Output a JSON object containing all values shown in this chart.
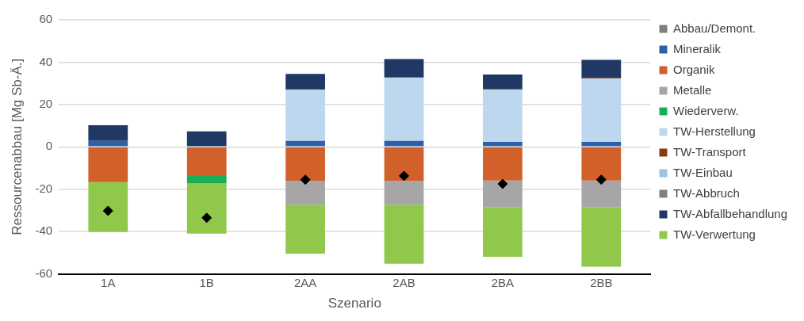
{
  "chart_data": {
    "type": "bar",
    "stacked": true,
    "xlabel": "Szenario",
    "ylabel": "Ressourcenabbau [Mg Sb-Ä.]",
    "categories": [
      "1A",
      "1B",
      "2AA",
      "2AB",
      "2BA",
      "2BB"
    ],
    "ylim": [
      -60,
      60
    ],
    "yticks": [
      -60,
      -40,
      -20,
      0,
      20,
      40,
      60
    ],
    "grid": "y",
    "legend": "right",
    "series": [
      {
        "name": "Abbau/Demont.",
        "color": "#7f7f7f",
        "values": [
          0,
          0,
          0,
          0,
          0,
          0
        ]
      },
      {
        "name": "Mineralik",
        "color": "#2e5fa8",
        "values": [
          2.8,
          0.3,
          2.8,
          2.8,
          2.4,
          2.4
        ]
      },
      {
        "name": "Organik",
        "color": "#d2602a",
        "values": [
          -16.6,
          -13.7,
          -16,
          -16.1,
          -15.9,
          -15.9
        ]
      },
      {
        "name": "Metalle",
        "color": "#a6a6a6",
        "values": [
          0,
          0,
          -11.3,
          -11.2,
          -12.5,
          -12.5
        ]
      },
      {
        "name": "Wiederverw.",
        "color": "#1aaf54",
        "values": [
          0,
          -3.6,
          0,
          0,
          0,
          0
        ]
      },
      {
        "name": "TW-Herstellung",
        "color": "#bdd7ee",
        "values": [
          0,
          0,
          24.3,
          29.9,
          24.6,
          29.9
        ]
      },
      {
        "name": "TW-Transport",
        "color": "#843c0c",
        "values": [
          0,
          0,
          0.3,
          0.3,
          0.3,
          0.3
        ]
      },
      {
        "name": "TW-Einbau",
        "color": "#9dc3e6",
        "values": [
          0,
          0,
          0,
          0,
          0,
          0
        ]
      },
      {
        "name": "TW-Abbruch",
        "color": "#808080",
        "values": [
          0,
          0,
          0,
          0,
          0,
          0
        ]
      },
      {
        "name": "TW-Abfallbehandlung",
        "color": "#1f3864",
        "values": [
          7.4,
          7,
          7.1,
          8.5,
          6.9,
          8.5
        ]
      },
      {
        "name": "TW-Verwertung",
        "color": "#8fc84a",
        "values": [
          -23.6,
          -23.7,
          -23.1,
          -27.9,
          -23.5,
          -28.2
        ]
      },
      {
        "type": "scatter",
        "marker": "diamond",
        "color": "#000000",
        "x": [
          "1A",
          "1B",
          "2AA",
          "2AB",
          "2BA",
          "2BB"
        ],
        "values": [
          -30.2,
          -33.5,
          -15.5,
          -13.7,
          -17.5,
          -15.5
        ]
      }
    ]
  }
}
